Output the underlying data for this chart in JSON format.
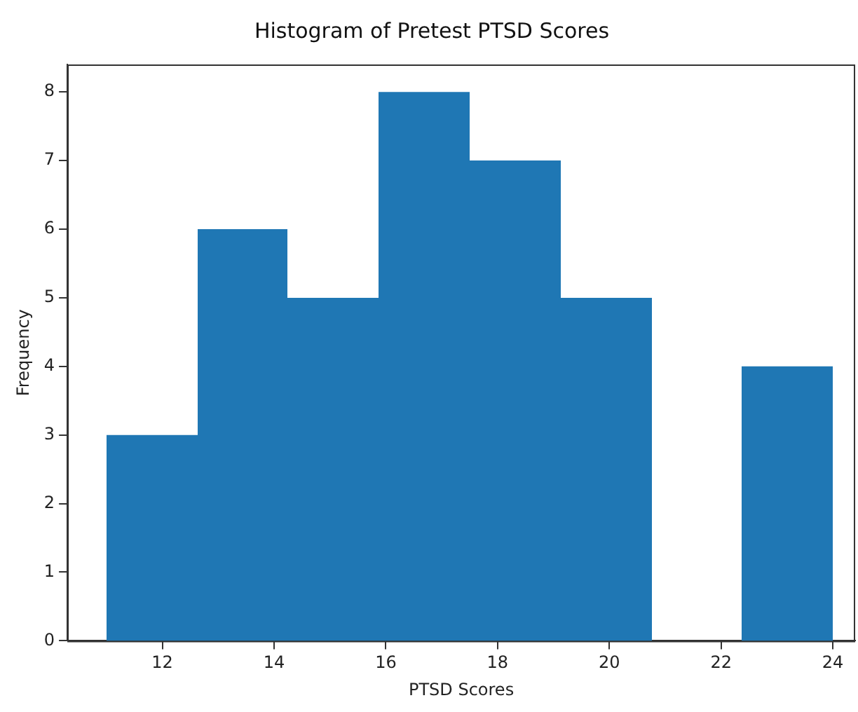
{
  "chart_data": {
    "type": "histogram",
    "title": "Histogram of Pretest PTSD Scores",
    "xlabel": "PTSD Scores",
    "ylabel": "Frequency",
    "bins": [
      11,
      12.625,
      14.25,
      15.875,
      17.5,
      19.125,
      20.75,
      22.375,
      24
    ],
    "values": [
      3,
      6,
      5,
      8,
      7,
      5,
      0,
      4
    ],
    "color": "#1f77b4",
    "xlim": [
      10.3,
      24.4
    ],
    "xticks": [
      12,
      14,
      16,
      18,
      20,
      22,
      24
    ],
    "ylim": [
      0,
      8.4
    ],
    "yticks": [
      0,
      1,
      2,
      3,
      4,
      5,
      6,
      7,
      8
    ],
    "grid": false,
    "legend": false
  }
}
